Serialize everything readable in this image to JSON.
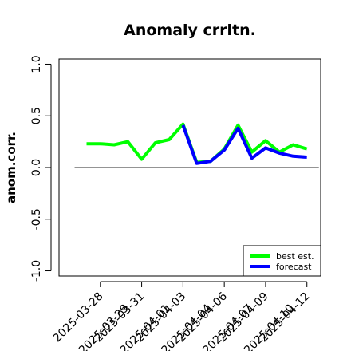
{
  "chart_data": {
    "type": "line",
    "title": "Anomaly crrltn.",
    "ylabel": "anom.corr.",
    "xlabel": "",
    "ylim": [
      -1.05,
      1.05
    ],
    "yticks": [
      -1.0,
      -0.5,
      0.0,
      0.5,
      1.0
    ],
    "ytick_labels": [
      "-1.0",
      "-0.5",
      "0.0",
      "0.5",
      "1.0"
    ],
    "x": [
      "2025-03-27",
      "2025-03-28",
      "2025-03-29",
      "2025-03-30",
      "2025-03-31",
      "2025-04-01",
      "2025-04-02",
      "2025-04-03",
      "2025-04-04",
      "2025-04-05",
      "2025-04-06",
      "2025-04-07",
      "2025-04-08",
      "2025-04-09",
      "2025-04-10",
      "2025-04-11",
      "2025-04-12"
    ],
    "xlim": [
      "2025-03-25",
      "2025-04-13"
    ],
    "xtick_labels": [
      "2025-03-28",
      "2025-03-29",
      "2025-03-31",
      "2025-04-01",
      "2025-04-03",
      "2025-04-04",
      "2025-04-06",
      "2025-04-07",
      "2025-04-09",
      "2025-04-10",
      "2025-04-12"
    ],
    "xtick_highlight": "2025-04-03",
    "highlight_color": "#228b22",
    "reference_line": 0.0,
    "series": [
      {
        "name": "best est.",
        "color": "#00ff00",
        "values": [
          0.23,
          0.23,
          0.22,
          0.25,
          0.08,
          0.24,
          0.27,
          0.42,
          0.05,
          0.06,
          0.18,
          0.41,
          0.15,
          0.26,
          0.15,
          0.22,
          0.18
        ]
      },
      {
        "name": "forecast",
        "color": "#0000ff",
        "values": [
          null,
          null,
          null,
          null,
          null,
          null,
          null,
          0.41,
          0.04,
          0.06,
          0.17,
          0.38,
          0.09,
          0.19,
          0.14,
          0.11,
          0.1
        ]
      }
    ],
    "legend_position": "bottom-right"
  }
}
